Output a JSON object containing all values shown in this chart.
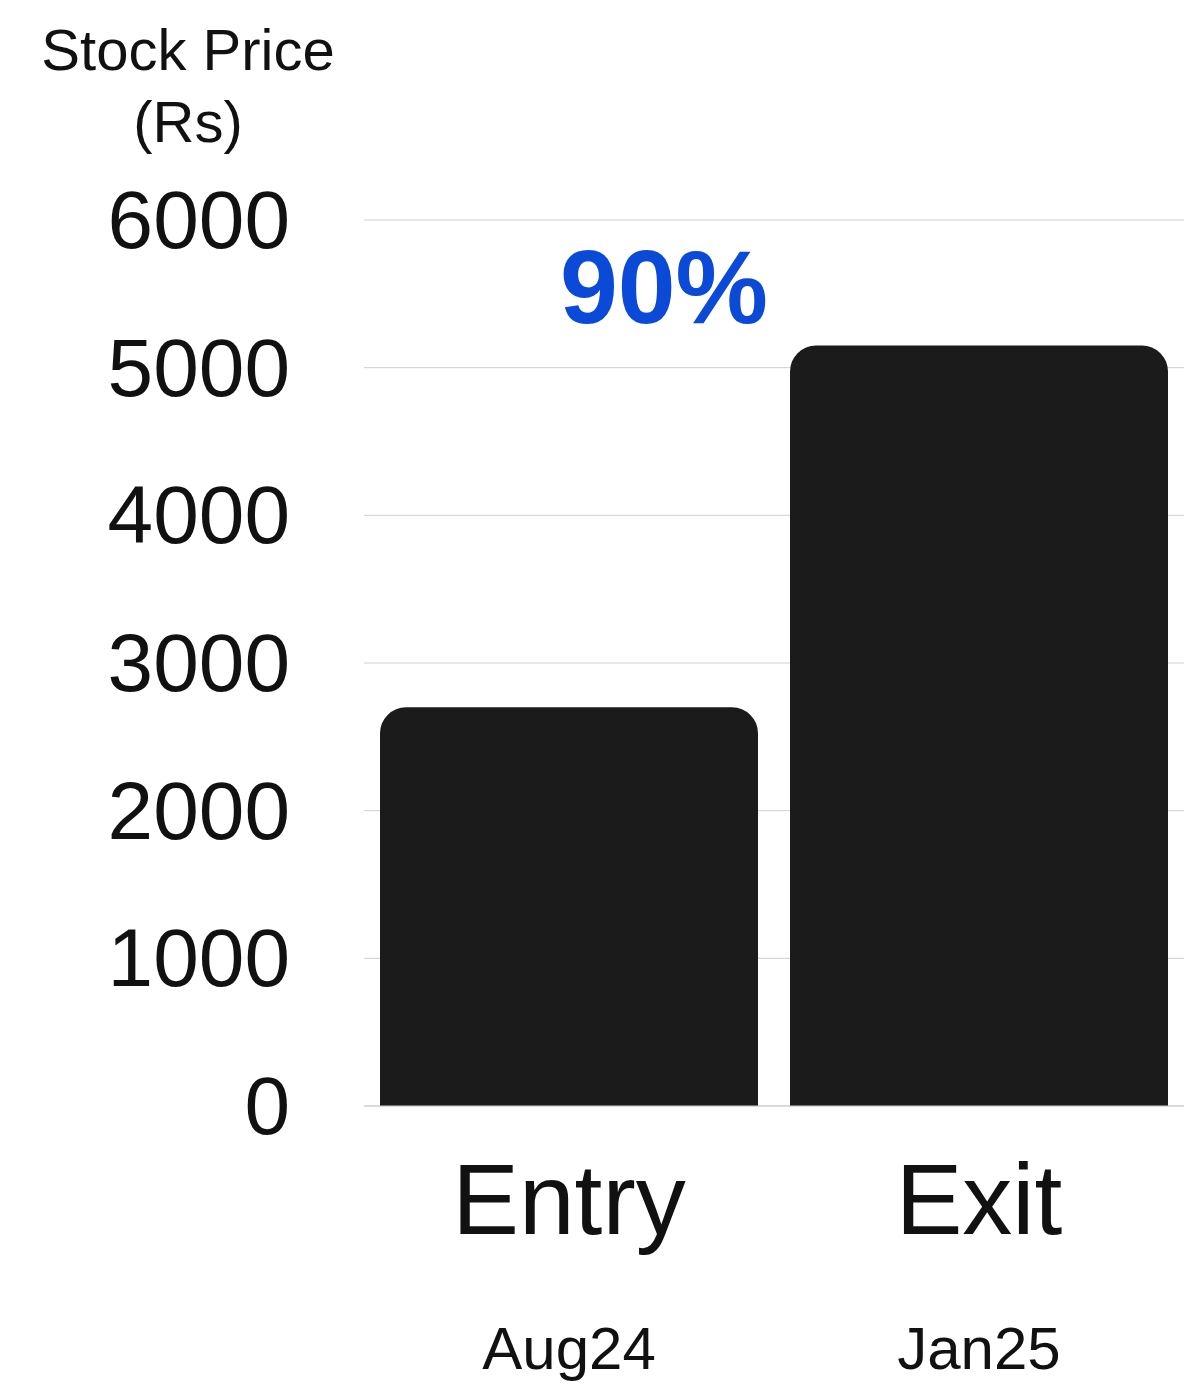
{
  "chart_data": {
    "type": "bar",
    "ylabel": "Stock Price (Rs)",
    "categories": [
      "Entry\nAug24",
      "Exit\nJan25"
    ],
    "values": [
      2700,
      5150
    ],
    "color": "#1b1b1b",
    "ylim": [
      0,
      6000
    ],
    "yticks": [
      0,
      1000,
      2000,
      3000,
      4000,
      5000,
      6000
    ],
    "grid": "y",
    "annotations": [
      "90%"
    ]
  }
}
